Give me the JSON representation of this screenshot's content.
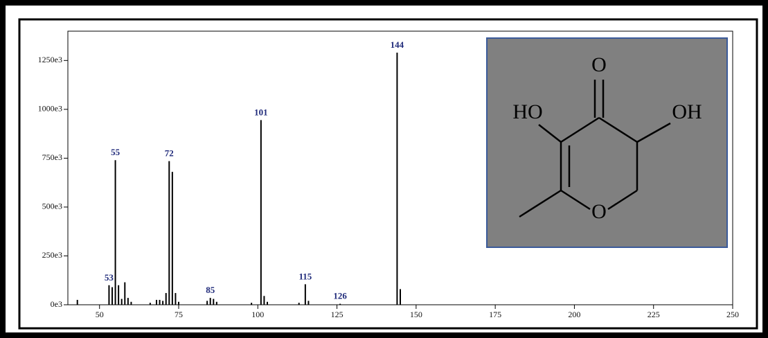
{
  "chart_data": {
    "type": "bar",
    "x": [
      43,
      53,
      54,
      55,
      56,
      57,
      58,
      59,
      60,
      66,
      68,
      69,
      70,
      71,
      72,
      73,
      74,
      75,
      84,
      85,
      86,
      87,
      98,
      101,
      102,
      103,
      113,
      115,
      116,
      126,
      144,
      145
    ],
    "values": [
      25000,
      100000,
      90000,
      740000,
      100000,
      30000,
      115000,
      35000,
      15000,
      10000,
      25000,
      25000,
      20000,
      60000,
      735000,
      680000,
      60000,
      15000,
      20000,
      35000,
      30000,
      15000,
      10000,
      945000,
      45000,
      15000,
      10000,
      105000,
      20000,
      5000,
      1290000,
      80000
    ],
    "color": "#000000",
    "xlim": [
      40,
      250
    ],
    "ylim": [
      0,
      1400000
    ],
    "xticks": [
      50,
      75,
      100,
      125,
      150,
      175,
      200,
      225,
      250
    ],
    "yticks": [
      {
        "value": 0,
        "label": "0e3"
      },
      {
        "value": 250000,
        "label": "250e3"
      },
      {
        "value": 500000,
        "label": "500e3"
      },
      {
        "value": 750000,
        "label": "750e3"
      },
      {
        "value": 1000000,
        "label": "1000e3"
      },
      {
        "value": 1250000,
        "label": "1250e3"
      }
    ],
    "annotations": [
      53,
      55,
      72,
      85,
      101,
      115,
      126,
      144
    ],
    "annotation_color": "#1f2a7a"
  },
  "structure": {
    "atoms": [
      "O",
      "HO",
      "OH",
      "O"
    ]
  }
}
